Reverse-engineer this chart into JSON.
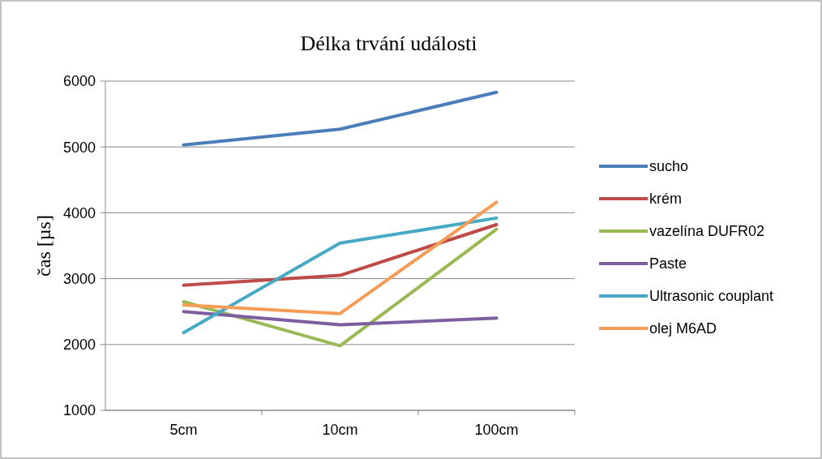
{
  "chart_data": {
    "type": "line",
    "title": "Délka trvání události",
    "ylabel": "čas [µs]",
    "categories": [
      "5cm",
      "10cm",
      "100cm"
    ],
    "series": [
      {
        "name": "sucho",
        "color": "#4a7ebb",
        "values": [
          5030,
          5270,
          5830
        ]
      },
      {
        "name": "krém",
        "color": "#be4b48",
        "values": [
          2900,
          3050,
          3820
        ]
      },
      {
        "name": "vazelína DUFR02",
        "color": "#98b954",
        "values": [
          2650,
          1980,
          3750
        ]
      },
      {
        "name": "Paste",
        "color": "#7d5fa0",
        "values": [
          2500,
          2300,
          2400
        ]
      },
      {
        "name": "Ultrasonic couplant",
        "color": "#46aac5",
        "values": [
          2180,
          3540,
          3920
        ]
      },
      {
        "name": "olej M6AD",
        "color": "#f59d56",
        "values": [
          2600,
          2470,
          4160
        ]
      }
    ],
    "ylim": [
      1000,
      6000
    ],
    "yticks": [
      1000,
      2000,
      3000,
      4000,
      5000,
      6000
    ],
    "grid": "y",
    "legend": "right",
    "marker": "none",
    "line_style": "solid"
  }
}
